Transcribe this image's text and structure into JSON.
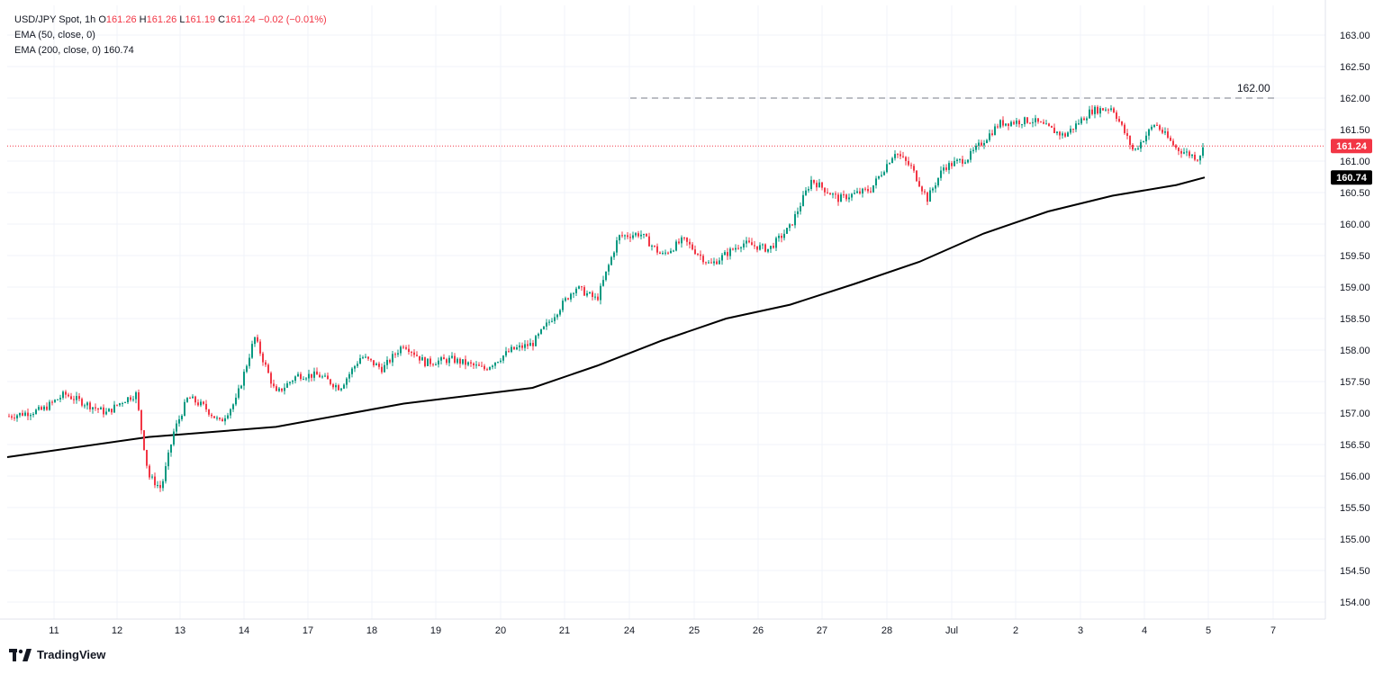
{
  "legend": {
    "symbol": "USD/JPY Spot, 1h",
    "o_label": "O",
    "o_value": "161.26",
    "h_label": "H",
    "h_value": "161.26",
    "l_label": "L",
    "l_value": "161.19",
    "c_label": "C",
    "c_value": "161.24",
    "change": "−0.02 (−0.01%)",
    "ema50": "EMA (50, close, 0)",
    "ema200": "EMA (200, close, 0)",
    "ema200_value": "160.74"
  },
  "brand": {
    "name": "TradingView",
    "icon": "tradingview-logo-icon"
  },
  "colors": {
    "up": "#089981",
    "down": "#f23645",
    "ema200": "#000000",
    "grid": "#f0f3fa",
    "text": "#131722",
    "last_price_bg": "#f23645",
    "ema_badge_bg": "#000000",
    "level_line": "#9598a1"
  },
  "chart_data": {
    "type": "candlestick",
    "interval": "1h",
    "symbol": "USD/JPY Spot",
    "ylim": [
      153.9,
      163.2
    ],
    "y_ticks": [
      "154.00",
      "154.50",
      "155.00",
      "155.50",
      "156.00",
      "156.50",
      "157.00",
      "157.50",
      "158.00",
      "158.50",
      "159.00",
      "159.50",
      "160.00",
      "160.50",
      "161.00",
      "161.50",
      "162.00",
      "162.50",
      "163.00"
    ],
    "x_ticks": [
      "11",
      "12",
      "13",
      "14",
      "17",
      "18",
      "19",
      "20",
      "21",
      "24",
      "25",
      "26",
      "27",
      "28",
      "Jul",
      "2",
      "3",
      "4",
      "5",
      "7"
    ],
    "last_price": "161.24",
    "ema200_last": "160.74",
    "level": {
      "value": 162.0,
      "label": "162.00"
    },
    "anchors": [
      {
        "day": "10",
        "price": 156.95
      },
      {
        "day": "10",
        "price": 157.05
      },
      {
        "day": "11",
        "price": 157.3
      },
      {
        "day": "11",
        "price": 157.15
      },
      {
        "day": "11",
        "price": 157.0
      },
      {
        "day": "12",
        "price": 157.2
      },
      {
        "day": "12",
        "price": 157.3
      },
      {
        "day": "12",
        "price": 156.0
      },
      {
        "day": "12",
        "price": 155.8
      },
      {
        "day": "12",
        "price": 156.7
      },
      {
        "day": "13",
        "price": 157.25
      },
      {
        "day": "13",
        "price": 157.1
      },
      {
        "day": "13",
        "price": 156.85
      },
      {
        "day": "13",
        "price": 157.2
      },
      {
        "day": "14",
        "price": 158.2
      },
      {
        "day": "14",
        "price": 157.3
      },
      {
        "day": "14",
        "price": 157.6
      },
      {
        "day": "17",
        "price": 157.6
      },
      {
        "day": "17",
        "price": 157.4
      },
      {
        "day": "17",
        "price": 157.9
      },
      {
        "day": "18",
        "price": 157.7
      },
      {
        "day": "18",
        "price": 158.1
      },
      {
        "day": "18",
        "price": 157.8
      },
      {
        "day": "19",
        "price": 157.85
      },
      {
        "day": "19",
        "price": 157.7
      },
      {
        "day": "20",
        "price": 158.0
      },
      {
        "day": "20",
        "price": 158.1
      },
      {
        "day": "20",
        "price": 158.55
      },
      {
        "day": "21",
        "price": 159.0
      },
      {
        "day": "21",
        "price": 158.8
      },
      {
        "day": "21",
        "price": 159.8
      },
      {
        "day": "24",
        "price": 159.85
      },
      {
        "day": "24",
        "price": 159.5
      },
      {
        "day": "24",
        "price": 159.75
      },
      {
        "day": "25",
        "price": 159.35
      },
      {
        "day": "25",
        "price": 159.7
      },
      {
        "day": "26",
        "price": 159.6
      },
      {
        "day": "26",
        "price": 159.95
      },
      {
        "day": "26",
        "price": 160.7
      },
      {
        "day": "27",
        "price": 160.4
      },
      {
        "day": "27",
        "price": 160.55
      },
      {
        "day": "28",
        "price": 161.15
      },
      {
        "day": "28",
        "price": 160.9
      },
      {
        "day": "28",
        "price": 160.4
      },
      {
        "day": "28",
        "price": 160.9
      },
      {
        "day": "Jul",
        "price": 161.05
      },
      {
        "day": "Jul",
        "price": 161.6
      },
      {
        "day": "2",
        "price": 161.65
      },
      {
        "day": "2",
        "price": 161.4
      },
      {
        "day": "3",
        "price": 161.8
      },
      {
        "day": "3",
        "price": 161.85
      },
      {
        "day": "3",
        "price": 161.15
      },
      {
        "day": "4",
        "price": 161.6
      },
      {
        "day": "4",
        "price": 161.2
      },
      {
        "day": "4",
        "price": 161.05
      },
      {
        "day": "5",
        "price": 161.24
      }
    ],
    "ema200_series": [
      {
        "day": "10",
        "value": 156.3
      },
      {
        "day": "12",
        "value": 156.62
      },
      {
        "day": "14",
        "value": 156.78
      },
      {
        "day": "18",
        "value": 157.15
      },
      {
        "day": "20",
        "value": 157.4
      },
      {
        "day": "21",
        "value": 157.75
      },
      {
        "day": "24",
        "value": 158.15
      },
      {
        "day": "25",
        "value": 158.5
      },
      {
        "day": "26",
        "value": 158.72
      },
      {
        "day": "27",
        "value": 159.05
      },
      {
        "day": "28",
        "value": 159.4
      },
      {
        "day": "Jul",
        "value": 159.85
      },
      {
        "day": "2",
        "value": 160.2
      },
      {
        "day": "3",
        "value": 160.45
      },
      {
        "day": "4",
        "value": 160.62
      },
      {
        "day": "5",
        "value": 160.74
      }
    ]
  }
}
